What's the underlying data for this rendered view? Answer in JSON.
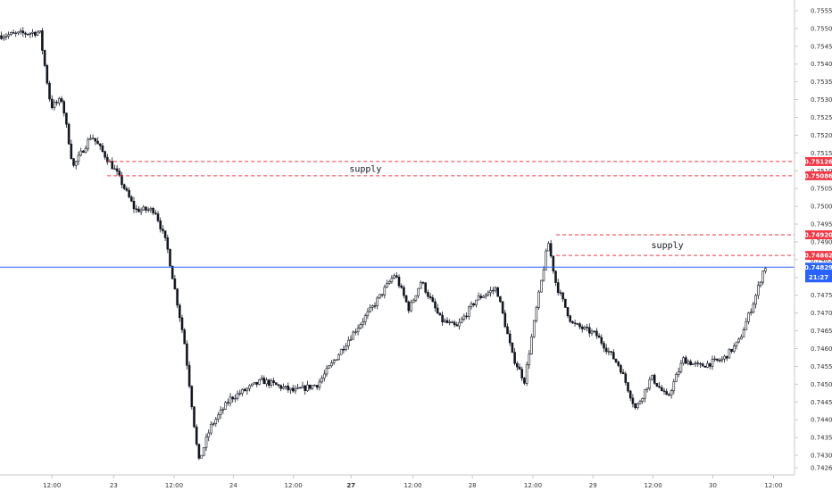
{
  "chart_data": {
    "type": "candlestick",
    "ylim": [
      0.7426,
      0.7557
    ],
    "y_ticks": [
      "0.75550",
      "0.75500",
      "0.75450",
      "0.75400",
      "0.75350",
      "0.75300",
      "0.75250",
      "0.75200",
      "0.75150",
      "0.75100",
      "0.75050",
      "0.75000",
      "0.74950",
      "0.74900",
      "0.74850",
      "0.74800",
      "0.74750",
      "0.74700",
      "0.74650",
      "0.74600",
      "0.74550",
      "0.74500",
      "0.74450",
      "0.74400",
      "0.74350",
      "0.74300",
      "0.74265"
    ],
    "x_ticks": [
      {
        "label": "12:00",
        "pos": 0.0654,
        "bold": false
      },
      {
        "label": "23",
        "pos": 0.1431,
        "bold": false
      },
      {
        "label": "12:00",
        "pos": 0.2191,
        "bold": false
      },
      {
        "label": "24",
        "pos": 0.2937,
        "bold": false
      },
      {
        "label": "12:00",
        "pos": 0.3692,
        "bold": false
      },
      {
        "label": "27",
        "pos": 0.4418,
        "bold": true
      },
      {
        "label": "12:00",
        "pos": 0.5197,
        "bold": false
      },
      {
        "label": "28",
        "pos": 0.5946,
        "bold": false
      },
      {
        "label": "12:00",
        "pos": 0.6708,
        "bold": false
      },
      {
        "label": "29",
        "pos": 0.7463,
        "bold": false
      },
      {
        "label": "12:00",
        "pos": 0.822,
        "bold": false
      },
      {
        "label": "30",
        "pos": 0.8972,
        "bold": false
      },
      {
        "label": "12:00",
        "pos": 0.9736,
        "bold": false
      }
    ],
    "anchors": [
      [
        0.0,
        0.7548
      ],
      [
        0.05,
        0.7549
      ],
      [
        0.064,
        0.7528
      ],
      [
        0.078,
        0.753
      ],
      [
        0.092,
        0.7511
      ],
      [
        0.115,
        0.752
      ],
      [
        0.148,
        0.7509
      ],
      [
        0.17,
        0.7499
      ],
      [
        0.195,
        0.7499
      ],
      [
        0.21,
        0.7489
      ],
      [
        0.232,
        0.7462
      ],
      [
        0.25,
        0.7428
      ],
      [
        0.265,
        0.7438
      ],
      [
        0.29,
        0.7446
      ],
      [
        0.33,
        0.7451
      ],
      [
        0.37,
        0.7448
      ],
      [
        0.4,
        0.745
      ],
      [
        0.44,
        0.7463
      ],
      [
        0.47,
        0.7472
      ],
      [
        0.497,
        0.7481
      ],
      [
        0.515,
        0.7471
      ],
      [
        0.53,
        0.7479
      ],
      [
        0.555,
        0.7468
      ],
      [
        0.575,
        0.7466
      ],
      [
        0.6,
        0.7474
      ],
      [
        0.625,
        0.7477
      ],
      [
        0.645,
        0.7458
      ],
      [
        0.66,
        0.7451
      ],
      [
        0.675,
        0.7471
      ],
      [
        0.69,
        0.749
      ],
      [
        0.7,
        0.7478
      ],
      [
        0.72,
        0.7467
      ],
      [
        0.75,
        0.7464
      ],
      [
        0.78,
        0.7455
      ],
      [
        0.8,
        0.7443
      ],
      [
        0.82,
        0.7452
      ],
      [
        0.84,
        0.7446
      ],
      [
        0.86,
        0.7457
      ],
      [
        0.88,
        0.7455
      ],
      [
        0.91,
        0.7457
      ],
      [
        0.93,
        0.7462
      ],
      [
        0.95,
        0.7474
      ],
      [
        0.962,
        0.7483
      ]
    ],
    "levels": [
      {
        "value": 0.75126,
        "label": "0.75126",
        "color": "#f23645",
        "x_start": 0.135
      },
      {
        "value": 0.75086,
        "label": "0.75086",
        "color": "#f23645",
        "x_start": 0.135
      },
      {
        "value": 0.7492,
        "label": "0.74920",
        "color": "#f23645",
        "x_start": 0.7
      },
      {
        "value": 0.74862,
        "label": "0.74862",
        "color": "#f23645",
        "x_start": 0.7
      }
    ],
    "current_price": {
      "value": 0.74829,
      "label": "0.74829",
      "countdown": "21:27",
      "color": "#2962ff"
    },
    "zones": [
      {
        "label": "supply",
        "top": 0.75126,
        "bottom": 0.75086,
        "label_x": 0.46
      },
      {
        "label": "supply",
        "top": 0.7492,
        "bottom": 0.74862,
        "label_x": 0.84
      }
    ],
    "colors": {
      "candle": "#131722",
      "grid": "#dddddd"
    }
  }
}
